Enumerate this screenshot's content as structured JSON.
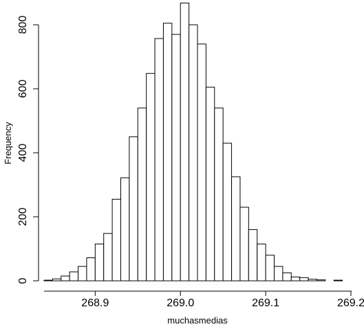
{
  "chart_data": {
    "type": "histogram",
    "title": "",
    "xlabel": "muchasmedias",
    "ylabel": "Frequency",
    "xlim": [
      268.84,
      269.2
    ],
    "ylim": [
      0,
      860
    ],
    "x_ticks": [
      268.9,
      269.0,
      269.1,
      269.2
    ],
    "x_tick_labels": [
      "268.9",
      "269.0",
      "269.1",
      "269.2"
    ],
    "y_ticks": [
      0,
      200,
      400,
      600,
      800
    ],
    "y_tick_labels": [
      "0",
      "200",
      "400",
      "600",
      "800"
    ],
    "bin_width": 0.01,
    "bins": [
      {
        "start": 268.84,
        "end": 268.85,
        "count": 2
      },
      {
        "start": 268.85,
        "end": 268.86,
        "count": 6
      },
      {
        "start": 268.86,
        "end": 268.87,
        "count": 15
      },
      {
        "start": 268.87,
        "end": 268.88,
        "count": 28
      },
      {
        "start": 268.88,
        "end": 268.89,
        "count": 45
      },
      {
        "start": 268.89,
        "end": 268.9,
        "count": 72
      },
      {
        "start": 268.9,
        "end": 268.91,
        "count": 115
      },
      {
        "start": 268.91,
        "end": 268.92,
        "count": 148
      },
      {
        "start": 268.92,
        "end": 268.93,
        "count": 255
      },
      {
        "start": 268.93,
        "end": 268.94,
        "count": 322
      },
      {
        "start": 268.94,
        "end": 268.95,
        "count": 450
      },
      {
        "start": 268.95,
        "end": 268.96,
        "count": 540
      },
      {
        "start": 268.96,
        "end": 268.97,
        "count": 648
      },
      {
        "start": 268.97,
        "end": 268.98,
        "count": 757
      },
      {
        "start": 268.98,
        "end": 268.99,
        "count": 805
      },
      {
        "start": 268.99,
        "end": 269.0,
        "count": 770
      },
      {
        "start": 269.0,
        "end": 269.01,
        "count": 868
      },
      {
        "start": 269.01,
        "end": 269.02,
        "count": 800
      },
      {
        "start": 269.02,
        "end": 269.03,
        "count": 740
      },
      {
        "start": 269.03,
        "end": 269.04,
        "count": 605
      },
      {
        "start": 269.04,
        "end": 269.05,
        "count": 540
      },
      {
        "start": 269.05,
        "end": 269.06,
        "count": 430
      },
      {
        "start": 269.06,
        "end": 269.07,
        "count": 325
      },
      {
        "start": 269.07,
        "end": 269.08,
        "count": 230
      },
      {
        "start": 269.08,
        "end": 269.09,
        "count": 160
      },
      {
        "start": 269.09,
        "end": 269.1,
        "count": 115
      },
      {
        "start": 269.1,
        "end": 269.11,
        "count": 80
      },
      {
        "start": 269.11,
        "end": 269.12,
        "count": 45
      },
      {
        "start": 269.12,
        "end": 269.13,
        "count": 25
      },
      {
        "start": 269.13,
        "end": 269.14,
        "count": 12
      },
      {
        "start": 269.14,
        "end": 269.15,
        "count": 10
      },
      {
        "start": 269.15,
        "end": 269.16,
        "count": 5
      },
      {
        "start": 269.16,
        "end": 269.17,
        "count": 3
      },
      {
        "start": 269.17,
        "end": 269.18,
        "count": 0
      },
      {
        "start": 269.18,
        "end": 269.19,
        "count": 2
      }
    ]
  }
}
